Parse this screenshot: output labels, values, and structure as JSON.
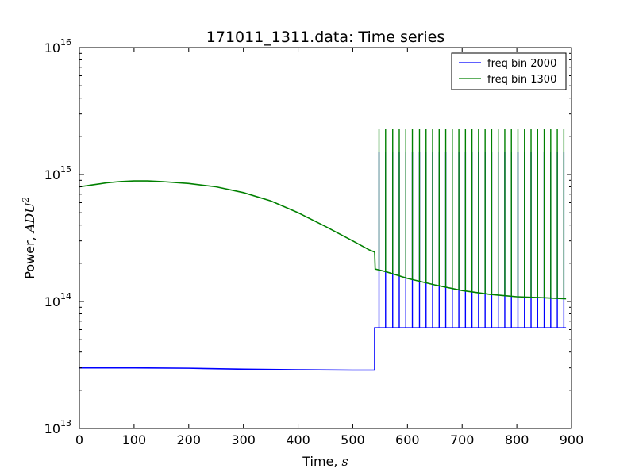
{
  "chart_data": {
    "type": "line",
    "title": "171011_1311.data: Time series",
    "xlabel": "Time, ",
    "xlabel_unit": "s",
    "ylabel": "Power, ",
    "ylabel_unit": "ADU",
    "ylabel_unit_exp": "2",
    "xlim": [
      0,
      900
    ],
    "ylim": [
      10000000000000.0,
      1e+16
    ],
    "yscale": "log",
    "grid": false,
    "legend_position": "top-right",
    "x_ticks": [
      "0",
      "100",
      "200",
      "300",
      "400",
      "500",
      "600",
      "700",
      "800",
      "900"
    ],
    "y_ticks": [
      {
        "base": "10",
        "exp": "13",
        "value": 10000000000000.0
      },
      {
        "base": "10",
        "exp": "14",
        "value": 100000000000000.0
      },
      {
        "base": "10",
        "exp": "15",
        "value": 1000000000000000.0
      },
      {
        "base": "10",
        "exp": "16",
        "value": 1e+16
      }
    ],
    "series": [
      {
        "name": "freq bin 2000",
        "color": "#0000ff",
        "points": [
          [
            0,
            30000000000000.0
          ],
          [
            100,
            30000000000000.0
          ],
          [
            200,
            29800000000000.0
          ],
          [
            300,
            29300000000000.0
          ],
          [
            400,
            29000000000000.0
          ],
          [
            500,
            28800000000000.0
          ],
          [
            540,
            28800000000000.0
          ],
          [
            540,
            62000000000000.0
          ],
          [
            890,
            62000000000000.0
          ]
        ],
        "spikes": {
          "peak": 1500000000000000.0,
          "times": [
            548,
            560,
            573,
            585,
            597,
            609,
            622,
            634,
            646,
            658,
            670,
            682,
            694,
            706,
            718,
            730,
            742,
            754,
            766,
            778,
            790,
            802,
            814,
            826,
            838,
            850,
            862,
            874,
            886
          ]
        }
      },
      {
        "name": "freq bin 1300",
        "color": "#008000",
        "points": [
          [
            0,
            800000000000000.0
          ],
          [
            25,
            830000000000000.0
          ],
          [
            50,
            860000000000000.0
          ],
          [
            75,
            880000000000000.0
          ],
          [
            100,
            890000000000000.0
          ],
          [
            125,
            890000000000000.0
          ],
          [
            150,
            880000000000000.0
          ],
          [
            200,
            850000000000000.0
          ],
          [
            250,
            800000000000000.0
          ],
          [
            300,
            720000000000000.0
          ],
          [
            350,
            620000000000000.0
          ],
          [
            400,
            500000000000000.0
          ],
          [
            450,
            390000000000000.0
          ],
          [
            500,
            300000000000000.0
          ],
          [
            530,
            255000000000000.0
          ],
          [
            540,
            245000000000000.0
          ],
          [
            541,
            180000000000000.0
          ],
          [
            560,
            172000000000000.0
          ],
          [
            600,
            152000000000000.0
          ],
          [
            650,
            135000000000000.0
          ],
          [
            700,
            122000000000000.0
          ],
          [
            750,
            114000000000000.0
          ],
          [
            800,
            109000000000000.0
          ],
          [
            850,
            107000000000000.0
          ],
          [
            890,
            105000000000000.0
          ]
        ],
        "spikes": {
          "peak": 2300000000000000.0,
          "times": [
            548,
            560,
            573,
            585,
            597,
            609,
            622,
            634,
            646,
            658,
            670,
            682,
            694,
            706,
            718,
            730,
            742,
            754,
            766,
            778,
            790,
            802,
            814,
            826,
            838,
            850,
            862,
            874,
            886
          ]
        }
      }
    ]
  }
}
